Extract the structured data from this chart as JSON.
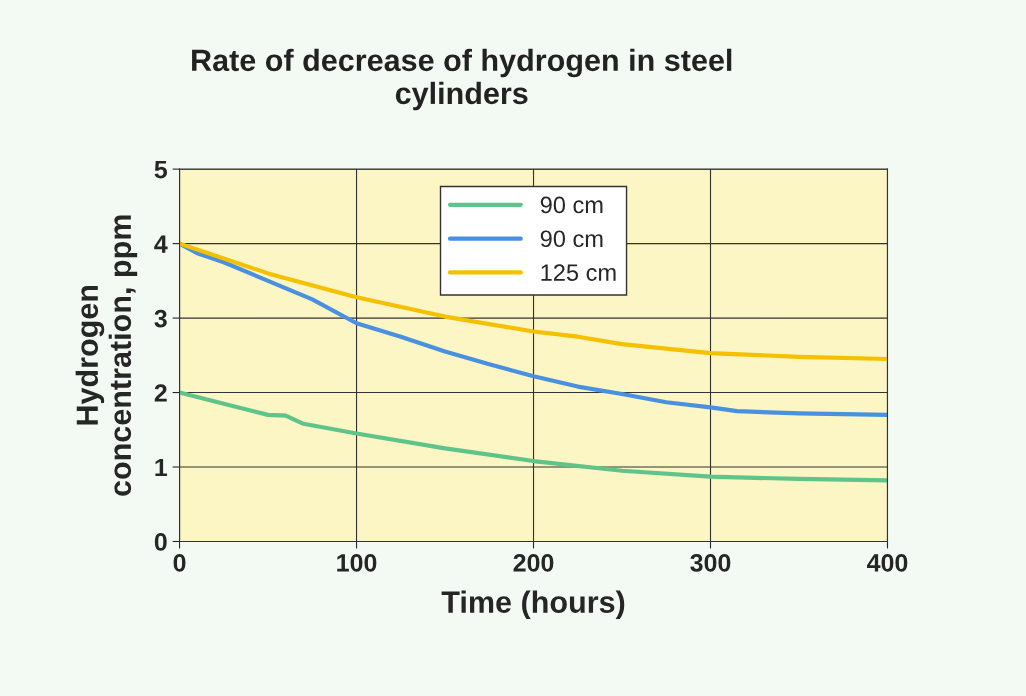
{
  "chart_data": {
    "type": "line",
    "title": "Rate of decrease of hydrogen in steel\ncylinders",
    "xlabel": "Time (hours)",
    "ylabel": "Hydrogen\nconcentration, ppm",
    "xlim": [
      0,
      400
    ],
    "xticks": [
      0,
      100,
      200,
      300,
      400
    ],
    "ylim": [
      0,
      5
    ],
    "yticks": [
      0,
      1,
      2,
      3,
      4,
      5
    ],
    "grid": true,
    "legend": "top",
    "marker": "none",
    "line_style": "solid",
    "series": [
      {
        "name": "90 cm",
        "color": "#5fc48a",
        "x": [
          0,
          25,
          50,
          60,
          70,
          100,
          150,
          200,
          250,
          300,
          350,
          400
        ],
        "values": [
          2.0,
          1.85,
          1.7,
          1.69,
          1.58,
          1.45,
          1.25,
          1.08,
          0.95,
          0.87,
          0.84,
          0.82
        ]
      },
      {
        "name": "90 cm",
        "color": "#4a90e0",
        "x": [
          0,
          10,
          25,
          50,
          75,
          100,
          125,
          150,
          175,
          200,
          225,
          250,
          275,
          300,
          315,
          350,
          400
        ],
        "values": [
          4.0,
          3.87,
          3.75,
          3.5,
          3.25,
          2.93,
          2.75,
          2.55,
          2.38,
          2.22,
          2.08,
          1.98,
          1.87,
          1.8,
          1.75,
          1.72,
          1.7
        ]
      },
      {
        "name": "125 cm",
        "color": "#f5c000",
        "x": [
          0,
          50,
          100,
          150,
          200,
          225,
          250,
          300,
          350,
          400
        ],
        "values": [
          4.0,
          3.6,
          3.28,
          3.02,
          2.82,
          2.75,
          2.65,
          2.53,
          2.48,
          2.45
        ]
      }
    ]
  }
}
